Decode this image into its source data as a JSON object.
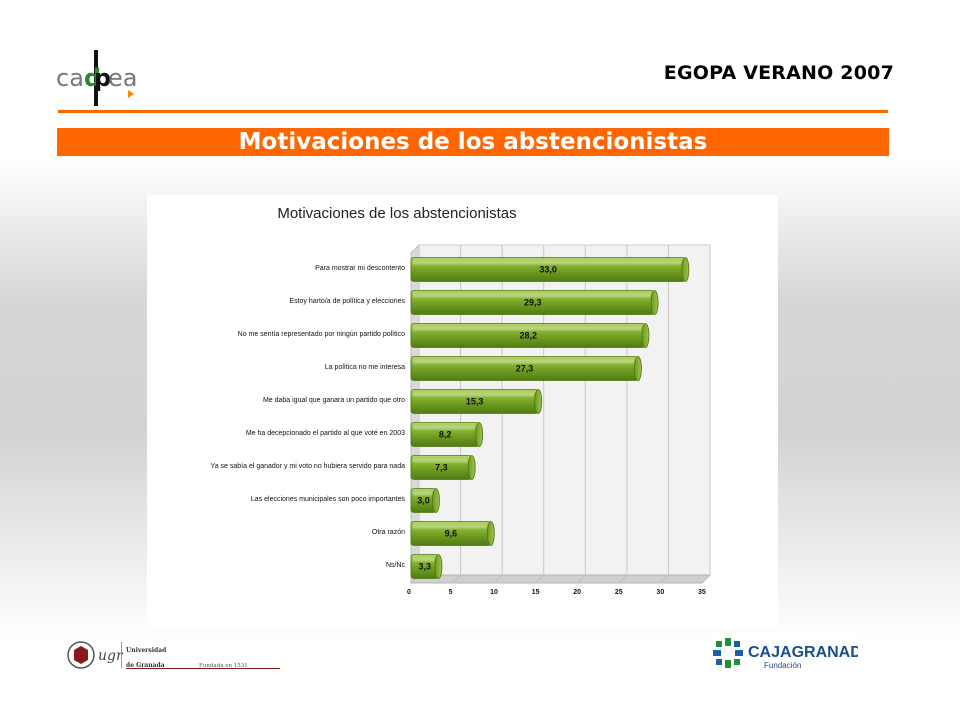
{
  "header": {
    "logo_text": "cadpea",
    "title": "EGOPA VERANO 2007"
  },
  "banner": {
    "title": "Motivaciones de los abstencionistas"
  },
  "chart_data": {
    "type": "bar",
    "orientation": "horizontal",
    "title": "Motivaciones de los abstencionistas",
    "categories": [
      "Para mostrar mi descontento",
      "Estoy harto/a de política y elecciones",
      "No me sentía representado por ningún partido político",
      "La política no me interesa",
      "Me daba igual que ganara un partido que otro",
      "Me ha decepcionado el partido al que voté en 2003",
      "Ya se sabía el ganador y mi voto no hubiera servido para nada",
      "Las elecciones municipales son poco importantes",
      "Otra razón",
      "Ns/Nc"
    ],
    "values": [
      33.0,
      29.3,
      28.2,
      27.3,
      15.3,
      8.2,
      7.3,
      3.0,
      9.6,
      3.3
    ],
    "value_labels": [
      "33,0",
      "29,3",
      "28,2",
      "27,3",
      "15,3",
      "8,2",
      "7,3",
      "3,0",
      "9,6",
      "3,3"
    ],
    "xlim": [
      0,
      35
    ],
    "xticks": [
      "0",
      "5",
      "10",
      "15",
      "20",
      "25",
      "30",
      "35"
    ],
    "grid": true,
    "bar_color": "#7aa827"
  },
  "footer": {
    "ugr_lines": [
      "Universidad",
      "de Granada",
      "Fundada en 1531"
    ],
    "ugr_mark": "ugr",
    "caja_name": "CAJAGRANADA",
    "caja_sub": "Fundación"
  }
}
